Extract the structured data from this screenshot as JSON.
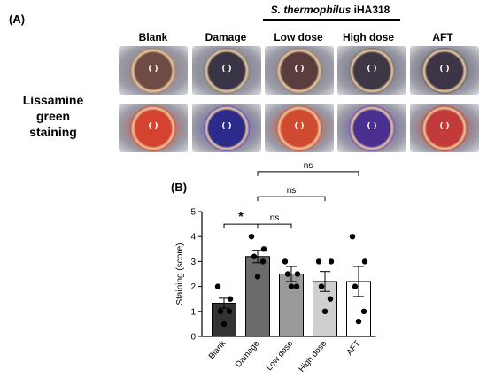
{
  "figure": {
    "panel_a_label": "(A)",
    "panel_b_label": "(B)",
    "row_label_line1": "Lissamine green",
    "row_label_line2": "staining",
    "group_header_italic": "S. thermophilus",
    "group_header_strain": " iHA318",
    "columns": [
      "Blank",
      "Damage",
      "Low dose",
      "High dose",
      "AFT"
    ]
  },
  "photo_style": {
    "top_row": [
      "#8a6f68",
      "#6b6a78",
      "#7a6d70",
      "#5d5a68",
      "#4c4d5e"
    ],
    "top_iris": [
      "#6e4b44",
      "#3a3447",
      "#5a3e3e",
      "#3f3646",
      "#3d3446"
    ],
    "bottom_row": [
      "#c63a2e",
      "#4b3cb0",
      "#c2402e",
      "#5a3aa8",
      "#b0302c"
    ],
    "bottom_iris": [
      "#d4432f",
      "#2c2a8a",
      "#cf4a30",
      "#4a2f90",
      "#c23a3a"
    ]
  },
  "chart_data": {
    "type": "bar",
    "categories": [
      "Blank",
      "Damage",
      "Low dose",
      "High dose",
      "AFT"
    ],
    "values": [
      1.33,
      3.2,
      2.5,
      2.2,
      2.2
    ],
    "sem": [
      0.2,
      0.25,
      0.3,
      0.4,
      0.6
    ],
    "points": [
      [
        2,
        1.5,
        1,
        1,
        0.5
      ],
      [
        4,
        3.5,
        3.2,
        3,
        2.4
      ],
      [
        3,
        2.5,
        2.5,
        2,
        2
      ],
      [
        3,
        3,
        2,
        1.5,
        1
      ],
      [
        4,
        3,
        2,
        1,
        0.6
      ]
    ],
    "bar_colors": [
      "#333333",
      "#6b6b6b",
      "#9a9a9a",
      "#cfcfcf",
      "#ffffff"
    ],
    "ylabel": "Staining (score)",
    "yticks": [
      "0",
      "1",
      "2",
      "3",
      "4",
      "5"
    ],
    "ylim": [
      0,
      5
    ],
    "significance": [
      {
        "from": 0,
        "to": 1,
        "label": "*",
        "y": 4.5
      },
      {
        "from": 1,
        "to": 2,
        "label": "ns",
        "y": 4.5
      },
      {
        "from": 1,
        "to": 3,
        "label": "ns",
        "y": 5.6
      },
      {
        "from": 1,
        "to": 4,
        "label": "ns",
        "y": 6.6
      }
    ]
  }
}
